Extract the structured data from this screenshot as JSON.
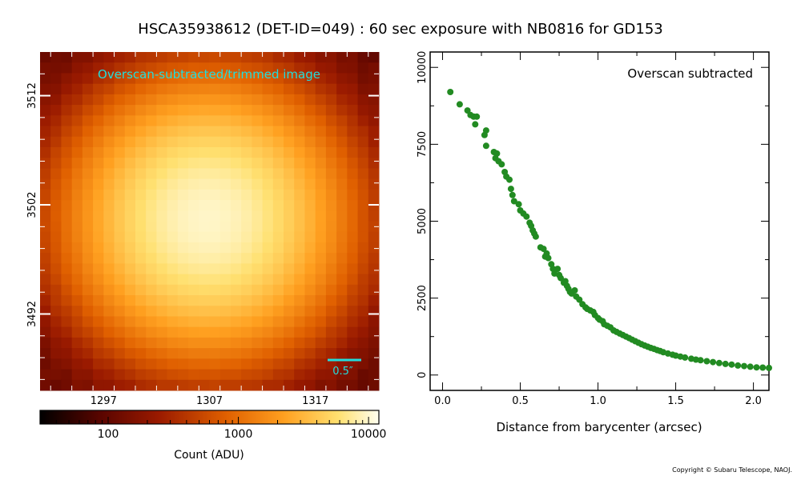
{
  "title": "HSCA35938612 (DET-ID=049) :  60 sec exposure with NB0816 for GD153",
  "copyright": "Copyright © Subaru Telescope, NAOJ.",
  "colors": {
    "star_core": "#fffde0",
    "star_mid": "#ff9a10",
    "background": "#8a0a00",
    "label_cyan": "#22dddd",
    "points": "#228b22"
  },
  "chart_data": [
    {
      "type": "heatmap",
      "annotation": "Overscan-subtracted/trimmed image",
      "scale_bar_label": "0.5″",
      "x_ticks": [
        1297,
        1307,
        1317
      ],
      "y_ticks": [
        3512,
        3502,
        3492
      ],
      "xlim": [
        1291,
        1323
      ],
      "ylim": [
        3485,
        3516
      ],
      "colorbar": {
        "label": "Count (ADU)",
        "scale": "log",
        "range": [
          30,
          12000
        ],
        "ticks": [
          "100",
          "1000",
          "10000"
        ]
      }
    },
    {
      "type": "scatter",
      "annotation": "Overscan subtracted",
      "xlabel": "Distance from barycenter (arcsec)",
      "ylabel": "",
      "xlim": [
        -0.08,
        2.1
      ],
      "ylim": [
        -500,
        10500
      ],
      "x_ticks": [
        "0.0",
        "0.5",
        "1.0",
        "1.5",
        "2.0"
      ],
      "y_ticks": [
        "0",
        "2500",
        "5000",
        "7500",
        "10000"
      ],
      "points": [
        [
          0.05,
          9200
        ],
        [
          0.11,
          8800
        ],
        [
          0.16,
          8600
        ],
        [
          0.18,
          8450
        ],
        [
          0.2,
          8400
        ],
        [
          0.21,
          8150
        ],
        [
          0.22,
          8400
        ],
        [
          0.27,
          7800
        ],
        [
          0.28,
          7950
        ],
        [
          0.28,
          7450
        ],
        [
          0.33,
          7250
        ],
        [
          0.34,
          7050
        ],
        [
          0.35,
          7200
        ],
        [
          0.36,
          6950
        ],
        [
          0.38,
          6850
        ],
        [
          0.4,
          6600
        ],
        [
          0.41,
          6450
        ],
        [
          0.43,
          6350
        ],
        [
          0.44,
          6050
        ],
        [
          0.45,
          5850
        ],
        [
          0.46,
          5650
        ],
        [
          0.49,
          5550
        ],
        [
          0.5,
          5350
        ],
        [
          0.52,
          5250
        ],
        [
          0.54,
          5150
        ],
        [
          0.56,
          4950
        ],
        [
          0.57,
          4850
        ],
        [
          0.58,
          4700
        ],
        [
          0.59,
          4600
        ],
        [
          0.6,
          4500
        ],
        [
          0.63,
          4150
        ],
        [
          0.65,
          4100
        ],
        [
          0.66,
          3850
        ],
        [
          0.67,
          3950
        ],
        [
          0.68,
          3800
        ],
        [
          0.7,
          3600
        ],
        [
          0.71,
          3450
        ],
        [
          0.72,
          3300
        ],
        [
          0.74,
          3450
        ],
        [
          0.75,
          3250
        ],
        [
          0.76,
          3150
        ],
        [
          0.78,
          3000
        ],
        [
          0.79,
          3050
        ],
        [
          0.8,
          2900
        ],
        [
          0.81,
          2800
        ],
        [
          0.82,
          2700
        ],
        [
          0.83,
          2650
        ],
        [
          0.85,
          2750
        ],
        [
          0.86,
          2550
        ],
        [
          0.88,
          2450
        ],
        [
          0.9,
          2300
        ],
        [
          0.92,
          2200
        ],
        [
          0.93,
          2150
        ],
        [
          0.95,
          2100
        ],
        [
          0.97,
          2050
        ],
        [
          0.98,
          1950
        ],
        [
          1.0,
          1850
        ],
        [
          1.01,
          1800
        ],
        [
          1.03,
          1750
        ],
        [
          1.04,
          1650
        ],
        [
          1.06,
          1600
        ],
        [
          1.08,
          1550
        ],
        [
          1.1,
          1450
        ],
        [
          1.12,
          1400
        ],
        [
          1.14,
          1350
        ],
        [
          1.16,
          1300
        ],
        [
          1.18,
          1250
        ],
        [
          1.2,
          1200
        ],
        [
          1.22,
          1150
        ],
        [
          1.24,
          1100
        ],
        [
          1.26,
          1050
        ],
        [
          1.28,
          1000
        ],
        [
          1.3,
          960
        ],
        [
          1.32,
          920
        ],
        [
          1.34,
          880
        ],
        [
          1.36,
          850
        ],
        [
          1.38,
          810
        ],
        [
          1.4,
          780
        ],
        [
          1.42,
          740
        ],
        [
          1.45,
          700
        ],
        [
          1.48,
          660
        ],
        [
          1.5,
          630
        ],
        [
          1.53,
          600
        ],
        [
          1.56,
          570
        ],
        [
          1.6,
          530
        ],
        [
          1.63,
          500
        ],
        [
          1.66,
          480
        ],
        [
          1.7,
          450
        ],
        [
          1.74,
          420
        ],
        [
          1.78,
          390
        ],
        [
          1.82,
          360
        ],
        [
          1.86,
          340
        ],
        [
          1.9,
          310
        ],
        [
          1.94,
          290
        ],
        [
          1.98,
          270
        ],
        [
          2.02,
          250
        ],
        [
          2.06,
          240
        ],
        [
          2.1,
          230
        ]
      ]
    }
  ]
}
